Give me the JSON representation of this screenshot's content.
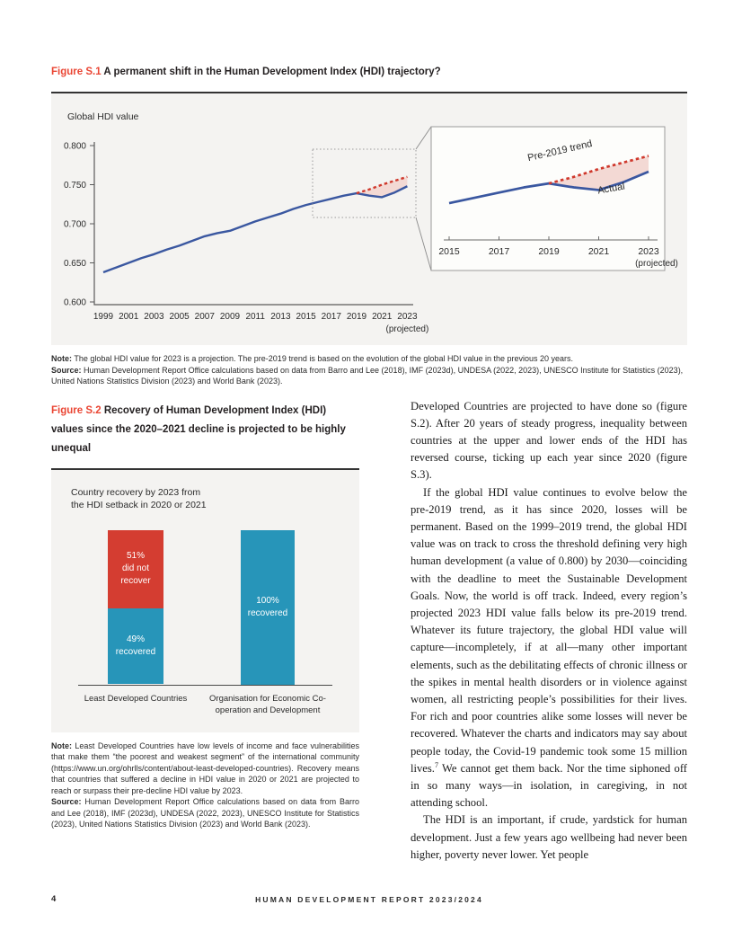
{
  "figure_s1": {
    "label": "Figure S.1",
    "title": "A permanent shift in the Human Development Index (HDI) trajectory?",
    "note_label": "Note:",
    "note": "The global HDI value for 2023 is a projection. The pre-2019 trend is based on the evolution of the global HDI value in the previous 20 years.",
    "source_label": "Source:",
    "source": "Human Development Report Office calculations based on data from Barro and Lee (2018), IMF (2023d), UNDESA (2022, 2023), UNESCO Institute for Statistics (2023), United Nations Statistics Division (2023) and World Bank (2023)."
  },
  "figure_s2": {
    "label": "Figure S.2",
    "title": "Recovery of Human Development Index (HDI) values since the 2020–2021 decline is projected to be highly unequal",
    "note_label": "Note:",
    "note": "Least Developed Countries have low levels of income and face vulnerabilities that make them “the poorest and weakest segment” of the international community (https://www.un.org/ohrlls/content/about-least-developed-countries). Recovery means that countries that suffered a decline in HDI value in 2020 or 2021 are projected to reach or surpass their pre-decline HDI value by 2023.",
    "source_label": "Source:",
    "source": "Human Development Report Office calculations based on data from Barro and Lee (2018), IMF (2023d), UNDESA (2022, 2023), UNESCO Institute for Statistics (2023), United Nations Statistics Division (2023) and World Bank (2023)."
  },
  "body": {
    "paragraphs": [
      {
        "text": "Developed Countries are projected to have done so (figure S.2). After 20 years of steady progress, inequality between countries at the upper and lower ends of the HDI has reversed course, ticking up each year since 2020 (figure S.3)."
      },
      {
        "text_a": "If the global HDI value continues to evolve below the pre-2019 trend, as it has since 2020, losses will be permanent. Based on the 1999–2019 trend, the global HDI value was on track to cross the threshold defining very high human development (a value of 0.800) by 2030—coinciding with the deadline to meet the Sustainable Development Goals. Now, the world is off track. Indeed, every region’s projected 2023 HDI value falls below its pre-2019 trend. Whatever its future trajectory, the global HDI value will capture—incompletely, if at all—many other important elements, such as the debilitating effects of chronic illness or the spikes in mental health disorders or in violence against women, all restricting people’s possibilities for their lives. For rich and poor countries alike some losses will never be recovered. Whatever the charts and indicators may say about people today, the Covid-19 pandemic took some 15 million lives.",
        "footnote_marker": "7",
        "text_b": " We cannot get them back. Nor the time siphoned off in so many ways—in isolation, in caregiving, in not attending school."
      },
      {
        "text": "The HDI is an important, if crude, yardstick for human development. Just a few years ago wellbeing had never been higher, poverty never lower. Yet people"
      }
    ]
  },
  "page": {
    "footer": {
      "page_number": "4",
      "report_title": "HUMAN DEVELOPMENT REPORT 2023/2024"
    }
  },
  "chart_data": [
    {
      "figure": "S.1",
      "type": "line",
      "axis_title": "Global HDI value",
      "x": [
        1999,
        2000,
        2001,
        2002,
        2003,
        2004,
        2005,
        2006,
        2007,
        2008,
        2009,
        2010,
        2011,
        2012,
        2013,
        2014,
        2015,
        2016,
        2017,
        2018,
        2019,
        2020,
        2021,
        2022,
        2023
      ],
      "series": [
        {
          "name": "Actual",
          "color": "#3a57a0",
          "values": [
            0.638,
            0.644,
            0.65,
            0.656,
            0.661,
            0.667,
            0.672,
            0.678,
            0.684,
            0.688,
            0.691,
            0.697,
            0.703,
            0.708,
            0.713,
            0.719,
            0.724,
            0.728,
            0.732,
            0.736,
            0.739,
            0.736,
            0.734,
            0.74,
            0.748
          ]
        },
        {
          "name": "Pre-2019 trend",
          "color": "#cf382c",
          "style": "dashed",
          "x": [
            2019,
            2020,
            2021,
            2022,
            2023
          ],
          "values": [
            0.739,
            0.744,
            0.75,
            0.755,
            0.76
          ]
        }
      ],
      "fill_between_color": "#f3d9d4",
      "ylim": [
        0.6,
        0.8
      ],
      "yticks": [
        "0.800",
        "0.750",
        "0.700",
        "0.650",
        "0.600"
      ],
      "ytick_values": [
        0.8,
        0.75,
        0.7,
        0.65,
        0.6
      ],
      "xtick_labels": [
        "1999",
        "2001",
        "2003",
        "2005",
        "2007",
        "2009",
        "2011",
        "2013",
        "2015",
        "2017",
        "2019",
        "2021",
        "2023"
      ],
      "x_note": "(projected)",
      "inset": {
        "x_range": [
          2015,
          2023
        ],
        "xtick_labels": [
          "2015",
          "2017",
          "2019",
          "2021",
          "2023"
        ],
        "x_note": "(projected)",
        "trend_label": "Pre-2019 trend",
        "actual_label": "Actual"
      }
    },
    {
      "figure": "S.2",
      "type": "stacked-bar",
      "title_lines": [
        "Country recovery by 2023 from",
        "the HDI setback in 2020 or 2021"
      ],
      "categories": [
        "Least Developed Countries",
        "Organisation for Economic Co-operation and Development"
      ],
      "series": [
        {
          "name": "did not recover",
          "color": "#d43d31",
          "values": [
            51,
            0
          ]
        },
        {
          "name": "recovered",
          "color": "#2795b9",
          "values": [
            49,
            100
          ]
        }
      ],
      "bar_labels": [
        {
          "bar": 0,
          "segment": "did not recover",
          "lines": [
            "51%",
            "did not",
            "recover"
          ]
        },
        {
          "bar": 0,
          "segment": "recovered",
          "lines": [
            "49%",
            "recovered"
          ]
        },
        {
          "bar": 1,
          "segment": "recovered",
          "lines": [
            "100%",
            "recovered"
          ]
        }
      ]
    }
  ]
}
